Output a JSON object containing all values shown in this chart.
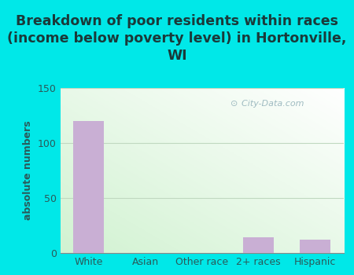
{
  "categories": [
    "White",
    "Asian",
    "Other race",
    "2+ races",
    "Hispanic"
  ],
  "values": [
    120,
    0,
    0,
    14,
    12
  ],
  "bar_color": "#c9afd4",
  "title": "Breakdown of poor residents within races\n(income below poverty level) in Hortonville,\nWI",
  "ylabel": "absolute numbers",
  "ylim": [
    0,
    150
  ],
  "yticks": [
    0,
    50,
    100,
    150
  ],
  "title_color": "#1a3a3a",
  "ylabel_color": "#2a5a5a",
  "tick_color": "#2a5a5a",
  "outer_bg": "#00e8e8",
  "watermark": "City-Data.com",
  "title_fontsize": 12.5,
  "ylabel_fontsize": 9,
  "tick_fontsize": 9
}
